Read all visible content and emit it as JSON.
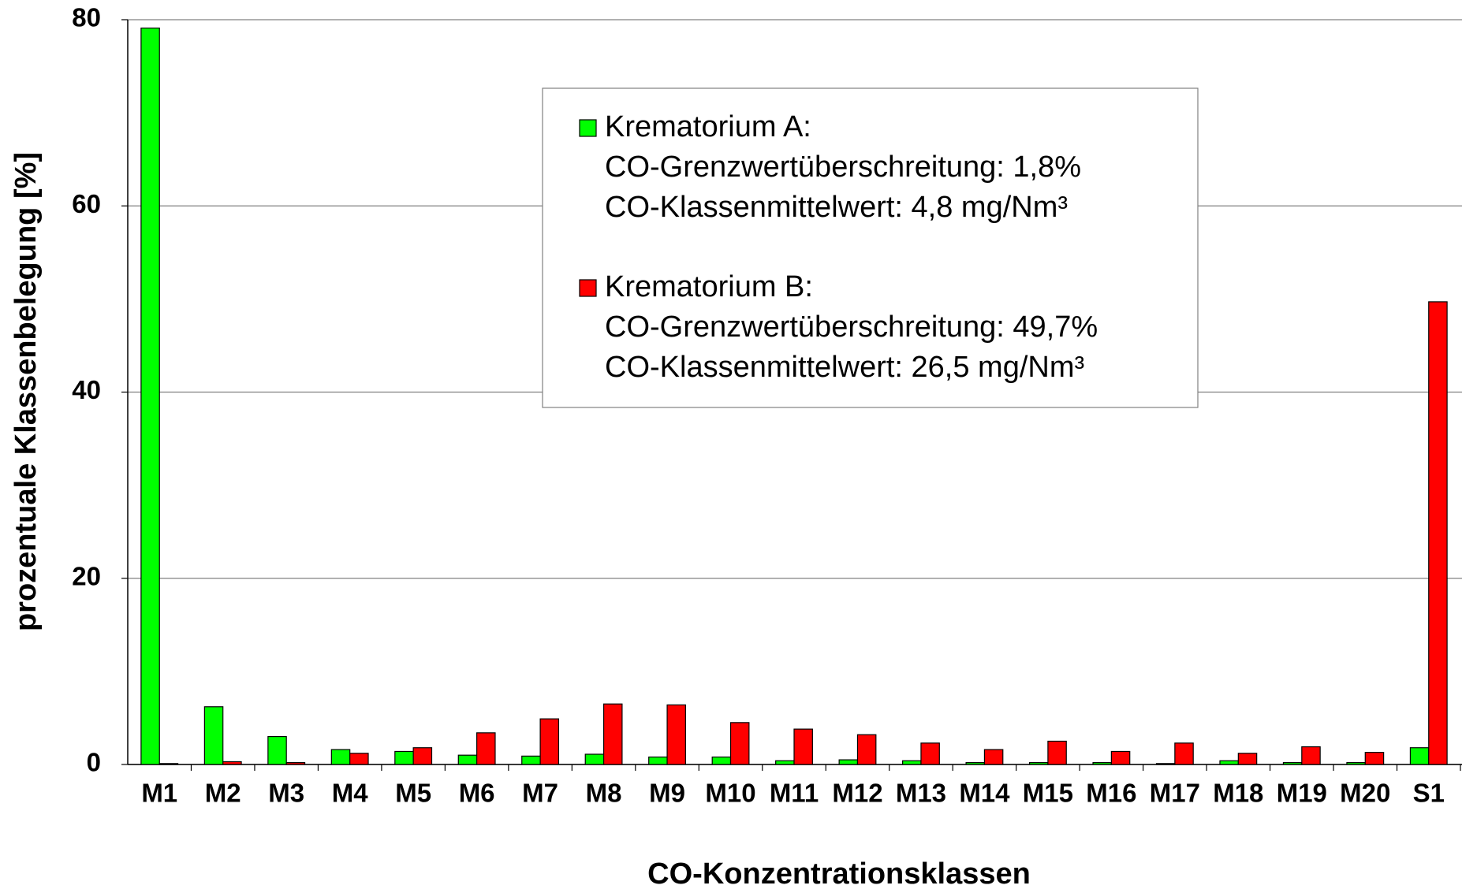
{
  "chart_data": {
    "type": "bar",
    "categories": [
      "M1",
      "M2",
      "M3",
      "M4",
      "M5",
      "M6",
      "M7",
      "M8",
      "M9",
      "M10",
      "M11",
      "M12",
      "M13",
      "M14",
      "M15",
      "M16",
      "M17",
      "M18",
      "M19",
      "M20",
      "S1"
    ],
    "series": [
      {
        "name": "Krematorium A:",
        "color": "#00ff00",
        "notes": [
          "CO-Grenzwertüberschreitung: 1,8%",
          "CO-Klassenmittelwert: 4,8 mg/Nm³"
        ],
        "values": [
          79.1,
          6.2,
          3.0,
          1.6,
          1.4,
          1.0,
          0.9,
          1.1,
          0.8,
          0.8,
          0.4,
          0.5,
          0.4,
          0.2,
          0.2,
          0.2,
          0.1,
          0.4,
          0.2,
          0.2,
          1.8
        ]
      },
      {
        "name": "Krematorium B:",
        "color": "#ff0000",
        "notes": [
          "CO-Grenzwertüberschreitung: 49,7%",
          "CO-Klassenmittelwert: 26,5 mg/Nm³"
        ],
        "values": [
          0.1,
          0.3,
          0.2,
          1.2,
          1.8,
          3.4,
          4.9,
          6.5,
          6.4,
          4.5,
          3.8,
          3.2,
          2.3,
          1.6,
          2.5,
          1.4,
          2.3,
          1.2,
          1.9,
          1.3,
          49.7
        ]
      }
    ],
    "x_label": "CO-Konzentrationsklassen",
    "y_label": "prozentuale Klassenbelegung [%]",
    "ylim": [
      0,
      80
    ],
    "yticks": [
      0,
      20,
      40,
      60,
      80
    ],
    "grid": true
  }
}
